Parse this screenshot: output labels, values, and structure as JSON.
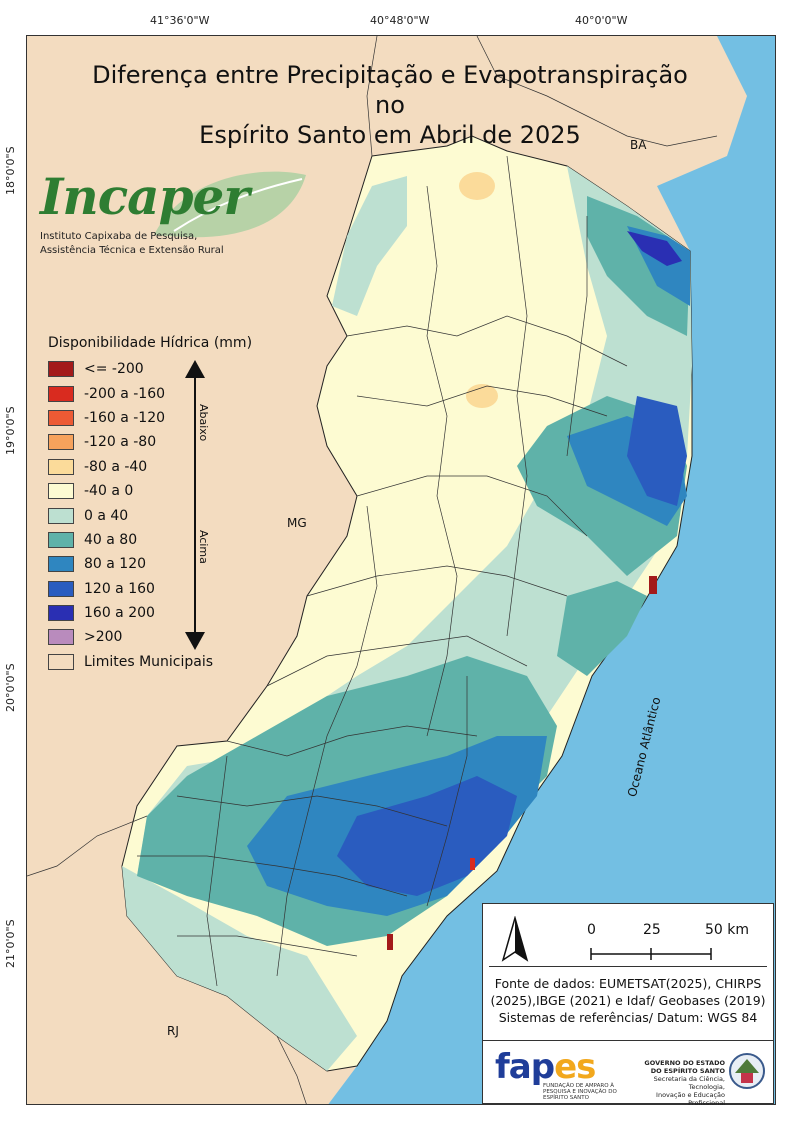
{
  "title_line1": "Diferença entre Precipitação e Evapotranspiração no",
  "title_line2": "Espírito Santo em Abril de 2025",
  "coordinates": {
    "top": [
      "41°36'0\"W",
      "40°48'0\"W",
      "40°0'0\"W"
    ],
    "left": [
      "18°0'0\"S",
      "19°0'0\"S",
      "20°0'0\"S",
      "21°0'0\"S"
    ]
  },
  "logo": {
    "word": "Incaper",
    "sub1": "Instituto Capixaba de Pesquisa,",
    "sub2": "Assistência Técnica e Extensão Rural"
  },
  "legend": {
    "title": "Disponibilidade Hídrica (mm)",
    "items": [
      {
        "label": "<= -200",
        "color": "#a31a1a"
      },
      {
        "label": "-200 a -160",
        "color": "#d92b1f"
      },
      {
        "label": "-160 a -120",
        "color": "#ec5a34"
      },
      {
        "label": "-120 a -80",
        "color": "#f6a25c"
      },
      {
        "label": "-80 a -40",
        "color": "#fbdb9a"
      },
      {
        "label": "-40 a 0",
        "color": "#fdfbd2"
      },
      {
        "label": "0 a 40",
        "color": "#bde0d1"
      },
      {
        "label": "40 a 80",
        "color": "#5fb2a9"
      },
      {
        "label": "80 a 120",
        "color": "#2f86c0"
      },
      {
        "label": "120 a 160",
        "color": "#2a5cbf"
      },
      {
        "label": "160 a 200",
        "color": "#2a2fb3"
      },
      {
        "label": ">200",
        "color": "#b98bbd"
      },
      {
        "label": "Limites Municipais",
        "color": "#f3dcc0"
      }
    ],
    "arrow_up_label": "Abaixo",
    "arrow_down_label": "Acima"
  },
  "places": {
    "ba": "BA",
    "mg": "MG",
    "rj": "RJ",
    "ocean": "Oceano Atlântico"
  },
  "scale": {
    "l0": "0",
    "l1": "25",
    "l2": "50 km"
  },
  "source": {
    "line1": "Fonte de dados: EUMETSAT(2025), CHIRPS",
    "line2": "(2025),IBGE (2021) e Idaf/ Geobases (2019)",
    "line3": "Sistemas de referências/ Datum: WGS 84"
  },
  "logos": {
    "fapes_word": "fap",
    "fapes_tail": "es",
    "fapes_sub": "FUNDAÇÃO DE AMPARO À PESQUISA E INOVAÇÃO DO ESPÍRITO SANTO",
    "gov1": "GOVERNO DO ESTADO",
    "gov2": "DO ESPÍRITO SANTO",
    "gov3": "Secretaria da Ciência, Tecnologia,",
    "gov4": "Inovação e Educação Profissional"
  },
  "colors": {
    "background_land": "#f3dcc0",
    "ocean": "#73bfe3"
  }
}
